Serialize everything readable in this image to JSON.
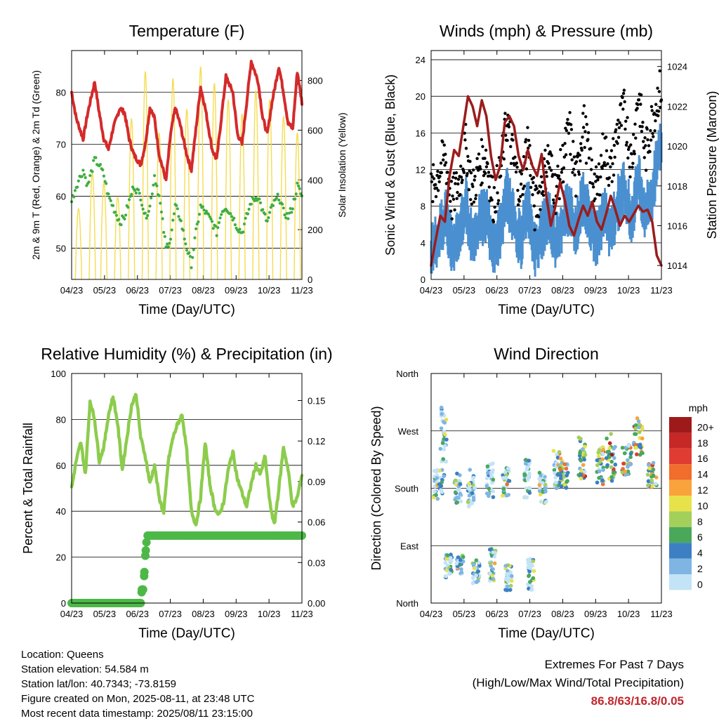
{
  "x_ticks": [
    "04/23",
    "05/23",
    "06/23",
    "07/23",
    "08/23",
    "09/23",
    "10/23",
    "11/23"
  ],
  "x_label": "Time (Day/UTC)",
  "colors": {
    "temp": "#d42a2a",
    "dewpoint": "#3fae3f",
    "solar": "#f5dc50",
    "wind": "#4a90d0",
    "gust": "#000000",
    "pressure": "#9b1c1c",
    "rh": "#8ccc4c",
    "precip": "#4db848"
  },
  "chart_data": [
    {
      "id": "temperature",
      "type": "line",
      "title": "Temperature (F)",
      "ylabel": "2m & 9m T (Red, Orange) & 2m Td (Green)",
      "ylabel_right": "Solar Insolation (Yellow)",
      "ylim": [
        44,
        88
      ],
      "yticks": [
        50,
        60,
        70,
        80
      ],
      "ylim_right": [
        0,
        920
      ],
      "yticks_right": [
        0,
        200,
        400,
        600,
        800
      ],
      "x": [
        0,
        2,
        5,
        7,
        10,
        12,
        14,
        16,
        18,
        21,
        23,
        25,
        27,
        30,
        32,
        34,
        36,
        38,
        41,
        43,
        45,
        47,
        50,
        52,
        54,
        56,
        58,
        61,
        63,
        65,
        67,
        70,
        72,
        74,
        76,
        78,
        81,
        83,
        85,
        87,
        90,
        92,
        94,
        96,
        98,
        100
      ],
      "series": [
        {
          "key": "temp",
          "values": [
            80,
            75,
            71,
            76,
            82,
            76,
            71,
            69,
            73,
            77,
            76,
            71,
            68,
            66,
            70,
            77,
            75,
            68,
            63,
            72,
            77,
            74,
            68,
            65,
            73,
            81,
            77,
            69,
            67,
            75,
            83,
            80,
            72,
            70,
            78,
            86,
            82,
            75,
            72,
            78,
            85,
            80,
            74,
            73,
            84,
            78
          ]
        },
        {
          "key": "dewpoint",
          "values": [
            59,
            62,
            65,
            62,
            67,
            66,
            64,
            60,
            58,
            55,
            56,
            59,
            62,
            60,
            56,
            58,
            64,
            60,
            50,
            52,
            58,
            56,
            50,
            47,
            53,
            58,
            57,
            55,
            53,
            57,
            58,
            56,
            54,
            53,
            56,
            59,
            60,
            57,
            55,
            58,
            60,
            57,
            56,
            58,
            62,
            60
          ]
        }
      ]
    },
    {
      "id": "winds",
      "type": "line",
      "title": "Winds (mph) & Pressure (mb)",
      "ylabel": "Sonic Wind & Gust (Blue, Black)",
      "ylabel_right": "Station Pressure (Maroon)",
      "ylim": [
        0,
        25
      ],
      "yticks": [
        0,
        4,
        8,
        12,
        16,
        20,
        24
      ],
      "ylim_right": [
        1013.3,
        1024.8
      ],
      "yticks_right": [
        1014,
        1016,
        1018,
        1020,
        1022,
        1024
      ],
      "series": [
        {
          "key": "pressure",
          "name": "Station Pressure",
          "x": [
            0,
            2,
            4,
            6,
            8,
            10,
            12,
            14,
            16,
            18,
            20,
            22,
            24,
            26,
            28,
            30,
            32,
            34,
            36,
            38,
            40,
            42,
            44,
            46,
            48,
            50,
            52,
            54,
            56,
            58,
            60,
            62,
            64,
            66,
            68,
            70,
            72,
            74,
            76,
            78,
            80,
            82,
            84,
            86,
            88,
            90,
            92,
            94,
            96,
            98,
            100
          ],
          "values": [
            1014.0,
            1015.3,
            1016.5,
            1016.2,
            1018.5,
            1019.8,
            1019.5,
            1021.0,
            1022.5,
            1022.0,
            1021.0,
            1022.3,
            1021.5,
            1019.5,
            1018.3,
            1019.0,
            1021.2,
            1021.5,
            1021.0,
            1019.5,
            1018.8,
            1019.8,
            1019.0,
            1018.5,
            1019.6,
            1017.5,
            1016.0,
            1017.0,
            1018.2,
            1017.3,
            1016.0,
            1015.5,
            1016.3,
            1017.0,
            1016.5,
            1017.2,
            1016.2,
            1015.8,
            1016.6,
            1017.5,
            1016.8,
            1016.0,
            1016.5,
            1016.2,
            1016.6,
            1017.0,
            1016.7,
            1016.8,
            1016.2,
            1014.5,
            1014.0
          ]
        },
        {
          "key": "wind",
          "name": "Sonic Wind",
          "x": [
            0,
            3,
            6,
            9,
            12,
            15,
            18,
            21,
            24,
            27,
            30,
            33,
            36,
            39,
            42,
            45,
            48,
            51,
            54,
            57,
            60,
            63,
            66,
            69,
            72,
            75,
            78,
            81,
            84,
            87,
            90,
            93,
            96,
            99
          ],
          "values": [
            4,
            5,
            8,
            4,
            6,
            9,
            5,
            7,
            8,
            4,
            6,
            10,
            7,
            5,
            9,
            4,
            6,
            8,
            5,
            7,
            9,
            6,
            10,
            7,
            5,
            8,
            6,
            9,
            11,
            7,
            12,
            8,
            10,
            15
          ]
        },
        {
          "key": "gust",
          "name": "Gust",
          "x": [
            0,
            3,
            6,
            9,
            12,
            15,
            18,
            21,
            24,
            27,
            30,
            33,
            36,
            39,
            42,
            45,
            48,
            51,
            54,
            57,
            60,
            63,
            66,
            69,
            72,
            75,
            78,
            81,
            84,
            87,
            90,
            93,
            96,
            99
          ],
          "values": [
            10,
            12,
            14,
            9,
            11,
            15,
            10,
            13,
            14,
            9,
            12,
            18,
            13,
            10,
            16,
            8,
            11,
            14,
            10,
            13,
            17,
            11,
            18,
            13,
            10,
            15,
            12,
            17,
            19,
            13,
            21,
            14,
            18,
            21
          ]
        }
      ]
    },
    {
      "id": "humidity",
      "type": "line",
      "title": "Relative Humidity (%) & Precipitation (in)",
      "ylabel": "Percent & Total Rainfall",
      "ylim": [
        0,
        100
      ],
      "yticks": [
        0,
        20,
        40,
        60,
        80,
        100
      ],
      "ylim_right": [
        0,
        0.17
      ],
      "yticks_right": [
        "0.00",
        "0.03",
        "0.06",
        "0.09",
        "0.12",
        "0.15"
      ],
      "series": [
        {
          "key": "rh",
          "name": "Relative Humidity",
          "x": [
            0,
            2,
            4,
            6,
            8,
            10,
            12,
            14,
            16,
            18,
            20,
            22,
            24,
            26,
            28,
            30,
            32,
            34,
            36,
            38,
            40,
            42,
            44,
            46,
            48,
            50,
            52,
            54,
            56,
            58,
            60,
            62,
            64,
            66,
            68,
            70,
            72,
            74,
            76,
            78,
            80,
            82,
            84,
            86,
            88,
            90,
            92,
            94,
            96,
            98,
            100
          ],
          "values": [
            50,
            62,
            70,
            56,
            88,
            80,
            62,
            68,
            82,
            90,
            78,
            58,
            72,
            86,
            91,
            72,
            64,
            52,
            60,
            46,
            39,
            62,
            72,
            78,
            82,
            66,
            40,
            34,
            46,
            70,
            52,
            42,
            38,
            44,
            58,
            66,
            54,
            48,
            42,
            52,
            60,
            56,
            64,
            44,
            34,
            50,
            68,
            58,
            42,
            46,
            56
          ]
        },
        {
          "key": "precip",
          "name": "Total Precipitation",
          "x": [
            0,
            30,
            30.5,
            31,
            31.5,
            32,
            32.5,
            33,
            100
          ],
          "values": [
            0,
            0,
            0.01,
            0.01,
            0.02,
            0.035,
            0.045,
            0.05,
            0.05
          ]
        }
      ]
    },
    {
      "id": "wind-direction",
      "type": "scatter",
      "title": "Wind Direction",
      "ylabel": "Direction (Colored By Speed)",
      "ylim": [
        0,
        360
      ],
      "ytick_labels": [
        "North",
        "East",
        "South",
        "West",
        "North"
      ],
      "legend": {
        "title": "mph",
        "placement": "right",
        "labels": [
          "20+",
          "18",
          "16",
          "14",
          "12",
          "10",
          "8",
          "6",
          "4",
          "2",
          "0"
        ],
        "colors": [
          "#9e1a1a",
          "#c62828",
          "#e03c31",
          "#f06d2c",
          "#f9a33c",
          "#e8e24a",
          "#a3cf5b",
          "#4aa85a",
          "#3c7fc2",
          "#7fb5e3",
          "#c3e3f7"
        ]
      }
    }
  ],
  "info": {
    "location": "Location: Queens",
    "elevation": "Station elevation: 54.584 m",
    "latlon": "Station lat/lon: 40.7343; -73.8159",
    "created": "Figure created on Mon, 2025-08-11, at 23:48 UTC",
    "recent": "Most recent data timestamp: 2025/08/11 23:15:00"
  },
  "extremes": {
    "title": "Extremes For Past 7 Days",
    "subtitle": "(High/Low/Max Wind/Total Precipitation)",
    "value": "86.8/63/16.8/0.05"
  }
}
